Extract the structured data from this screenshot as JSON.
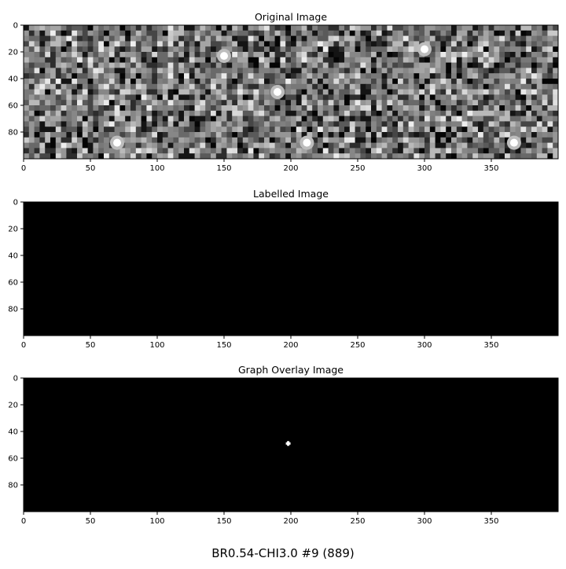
{
  "figure": {
    "title": "BR0.54-CHI3.0 #9 (889)"
  },
  "chart_data": [
    {
      "type": "heatmap",
      "title": "Original Image",
      "colormap": "gray",
      "image_shape": [
        100,
        400
      ],
      "xlim": [
        0,
        400
      ],
      "ylim": [
        100,
        0
      ],
      "xticks": [
        0,
        50,
        100,
        150,
        200,
        250,
        300,
        350
      ],
      "yticks": [
        0,
        20,
        40,
        60,
        80
      ],
      "content": "grayscale blocky noise texture",
      "bright_spots": [
        [
          70,
          88
        ],
        [
          212,
          88
        ],
        [
          367,
          88
        ],
        [
          150,
          23
        ],
        [
          300,
          18
        ],
        [
          190,
          50
        ]
      ]
    },
    {
      "type": "heatmap",
      "title": "Labelled Image",
      "colormap": "gray",
      "image_shape": [
        100,
        400
      ],
      "xlim": [
        0,
        400
      ],
      "ylim": [
        100,
        0
      ],
      "xticks": [
        0,
        50,
        100,
        150,
        200,
        250,
        300,
        350
      ],
      "yticks": [
        0,
        20,
        40,
        60,
        80
      ],
      "content": "all black"
    },
    {
      "type": "heatmap",
      "title": "Graph Overlay Image",
      "colormap": "gray",
      "image_shape": [
        100,
        400
      ],
      "xlim": [
        0,
        400
      ],
      "ylim": [
        100,
        0
      ],
      "xticks": [
        0,
        50,
        100,
        150,
        200,
        250,
        300,
        350
      ],
      "yticks": [
        0,
        20,
        40,
        60,
        80
      ],
      "content": "black with one white marker",
      "markers": [
        {
          "x": 198,
          "y": 49,
          "color": "#ffffff"
        }
      ]
    }
  ]
}
